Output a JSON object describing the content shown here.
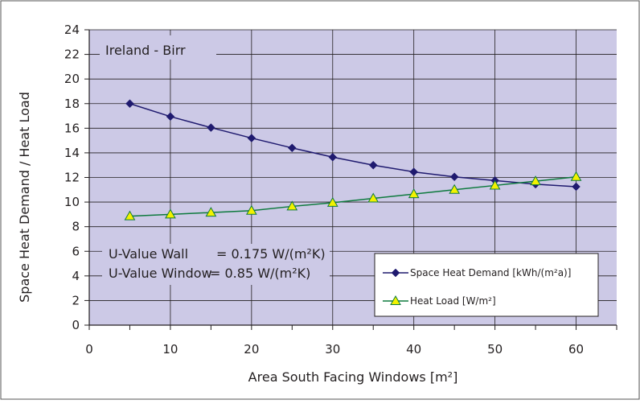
{
  "chart_data": {
    "type": "line",
    "title": "",
    "xlabel": "Area South Facing Windows [m²]",
    "ylabel": "Space Heat Demand / Heat Load",
    "xlim": [
      0,
      65
    ],
    "ylim": [
      0,
      24
    ],
    "x_ticks": [
      0,
      10,
      20,
      30,
      40,
      50,
      60
    ],
    "y_ticks": [
      0,
      2,
      4,
      6,
      8,
      10,
      12,
      14,
      16,
      18,
      20,
      22,
      24
    ],
    "grid": true,
    "plot_background": "#ccc9e6",
    "x": [
      5,
      10,
      15,
      20,
      25,
      30,
      35,
      40,
      45,
      50,
      55,
      60
    ],
    "series": [
      {
        "name": "Space Heat Demand [kWh/(m²a)]",
        "marker": "diamond",
        "color": "#1f1a6f",
        "values": [
          18.0,
          16.95,
          16.05,
          15.2,
          14.4,
          13.65,
          13.0,
          12.45,
          12.05,
          11.75,
          11.45,
          11.25
        ]
      },
      {
        "name": "Heat Load [W/m²]",
        "marker": "triangle",
        "color": "#0e7a3e",
        "marker_fill": "#f2f200",
        "values": [
          8.85,
          9.0,
          9.15,
          9.3,
          9.65,
          9.95,
          10.3,
          10.65,
          11.0,
          11.35,
          11.7,
          12.05
        ]
      }
    ],
    "annotations": {
      "location": "Ireland - Birr",
      "u_wall_label": "U-Value Wall",
      "u_wall_value": "= 0.175 W/(m²K)",
      "u_window_label": "U-Value Window",
      "u_window_value": "= 0.85 W/(m²K)"
    },
    "legend_position": "bottom-right"
  }
}
